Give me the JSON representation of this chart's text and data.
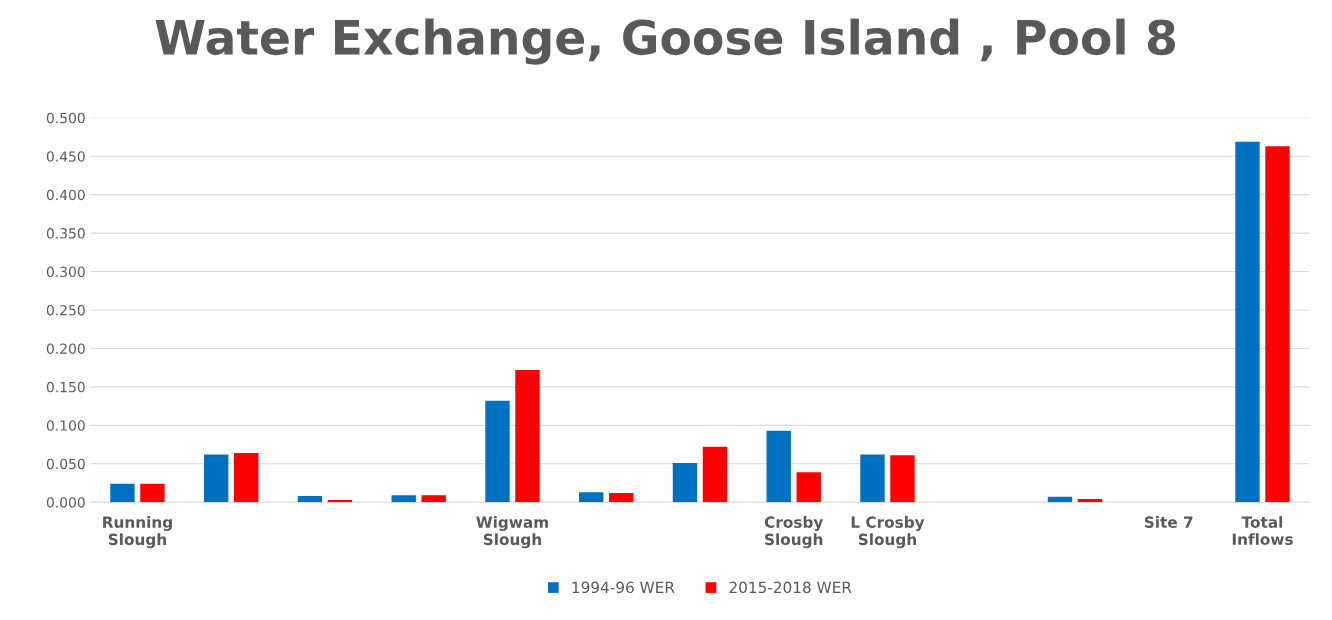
{
  "chart_data": {
    "type": "bar",
    "title": "Water Exchange, Goose Island , Pool 8",
    "categories": [
      "Running\nSlough",
      null,
      null,
      null,
      "Wigwam\nSlough",
      null,
      null,
      "Crosby\nSlough",
      "L Crosby\nSlough",
      null,
      null,
      "Site 7",
      "Total\nInflows"
    ],
    "series": [
      {
        "name": "1994-96 WER",
        "color": "#0070c0",
        "values": [
          0.024,
          0.062,
          0.008,
          0.009,
          0.132,
          0.013,
          0.051,
          0.093,
          0.062,
          null,
          0.007,
          null,
          0.469
        ]
      },
      {
        "name": "2015-2018 WER",
        "color": "#ff0000",
        "values": [
          0.024,
          0.064,
          0.003,
          0.009,
          0.172,
          0.012,
          0.072,
          0.039,
          0.061,
          null,
          0.004,
          null,
          0.463
        ]
      }
    ],
    "ylim": [
      0,
      0.5
    ],
    "yticks": [
      {
        "value": 0,
        "label": "0.000"
      },
      {
        "value": 0.05,
        "label": "0.050"
      },
      {
        "value": 0.1,
        "label": "0.100"
      },
      {
        "value": 0.15,
        "label": "0.150"
      },
      {
        "value": 0.2,
        "label": "0.200"
      },
      {
        "value": 0.25,
        "label": "0.250"
      },
      {
        "value": 0.3,
        "label": "0.300"
      },
      {
        "value": 0.35,
        "label": "0.350"
      },
      {
        "value": 0.4,
        "label": "0.400"
      },
      {
        "value": 0.45,
        "label": "0.450"
      },
      {
        "value": 0.5,
        "label": "0.500"
      }
    ],
    "grid": "y",
    "legend": "bottom"
  }
}
